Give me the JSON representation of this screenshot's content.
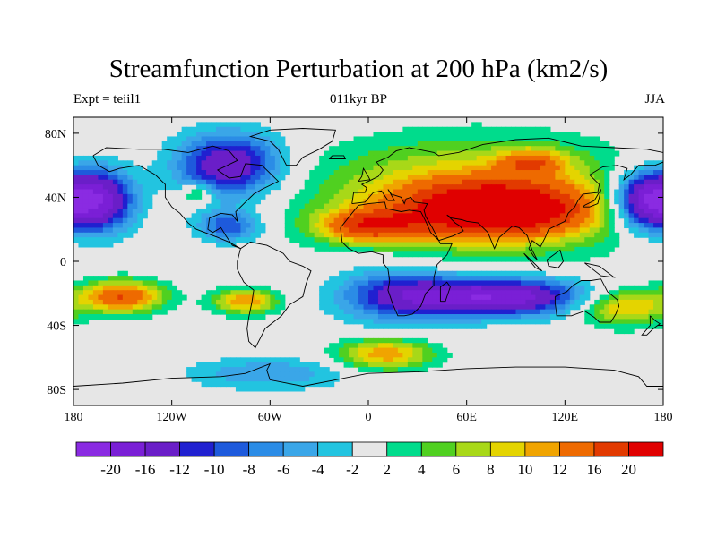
{
  "title": "Streamfunction Perturbation at 200 hPa (km2/s)",
  "subtitle_left": "Expt = teiil1",
  "subtitle_center": "011kyr BP",
  "subtitle_right": "JJA",
  "colors": {
    "land_outline": "#000000",
    "neutral": "#e6e6e6"
  },
  "chart_data": {
    "type": "heatmap",
    "projection": "cylindrical-equidistant",
    "xlim": [
      -180,
      180
    ],
    "ylim": [
      -90,
      90
    ],
    "x_ticks": [
      {
        "value": -180,
        "label": "180"
      },
      {
        "value": -120,
        "label": "120W"
      },
      {
        "value": -60,
        "label": "60W"
      },
      {
        "value": 0,
        "label": "0"
      },
      {
        "value": 60,
        "label": "60E"
      },
      {
        "value": 120,
        "label": "120E"
      },
      {
        "value": 180,
        "label": "180"
      }
    ],
    "y_ticks": [
      {
        "value": 80,
        "label": "80N"
      },
      {
        "value": 40,
        "label": "40N"
      },
      {
        "value": 0,
        "label": "0"
      },
      {
        "value": -40,
        "label": "40S"
      },
      {
        "value": -80,
        "label": "80S"
      }
    ],
    "colorbar": {
      "colors": [
        "#8a2be2",
        "#7a1fd6",
        "#6a1ec8",
        "#2020d0",
        "#1e5adc",
        "#2b8ce6",
        "#3aa6e8",
        "#22c4e0",
        "#e6e6e6",
        "#00dc8c",
        "#50d020",
        "#a8d818",
        "#e4d400",
        "#f0a400",
        "#ee6a00",
        "#e23a00",
        "#e00000"
      ],
      "labels": [
        "-20",
        "-16",
        "-12",
        "-10",
        "-8",
        "-6",
        "-4",
        "-2",
        "2",
        "4",
        "6",
        "8",
        "10",
        "12",
        "16",
        "20"
      ]
    },
    "features": [
      {
        "name": "asia-ridge",
        "lon": 80,
        "lat": 32,
        "value": 20,
        "extent_lon": 55,
        "extent_lat": 16
      },
      {
        "name": "asia-ridge-outer",
        "lon": 65,
        "lat": 40,
        "value": 12,
        "extent_lon": 95,
        "extent_lat": 34
      },
      {
        "name": "north-africa-high",
        "lon": 0,
        "lat": 22,
        "value": 14,
        "extent_lon": 30,
        "extent_lat": 10
      },
      {
        "name": "siberia-high",
        "lon": 100,
        "lat": 62,
        "value": 10,
        "extent_lon": 20,
        "extent_lat": 8
      },
      {
        "name": "north-america-low",
        "lon": -85,
        "lat": 60,
        "value": -16,
        "extent_lon": 32,
        "extent_lat": 20
      },
      {
        "name": "caribbean-low",
        "lon": -85,
        "lat": 22,
        "value": -10,
        "extent_lon": 20,
        "extent_lat": 10
      },
      {
        "name": "pacific-low-west",
        "lon": -165,
        "lat": 38,
        "value": -20,
        "extent_lon": 22,
        "extent_lat": 20
      },
      {
        "name": "pacific-low-east",
        "lon": 168,
        "lat": 38,
        "value": -20,
        "extent_lon": 20,
        "extent_lat": 18
      },
      {
        "name": "indian-ocean-low",
        "lon": 75,
        "lat": -22,
        "value": -20,
        "extent_lon": 60,
        "extent_lat": 12
      },
      {
        "name": "south-atlantic-low",
        "lon": 15,
        "lat": -20,
        "value": -8,
        "extent_lon": 35,
        "extent_lat": 20
      },
      {
        "name": "south-pacific-high",
        "lon": -150,
        "lat": -22,
        "value": 16,
        "extent_lon": 25,
        "extent_lat": 10
      },
      {
        "name": "south-america-high",
        "lon": -75,
        "lat": -25,
        "value": 12,
        "extent_lon": 20,
        "extent_lat": 8
      },
      {
        "name": "southern-ocean-high",
        "lon": 10,
        "lat": -58,
        "value": 12,
        "extent_lon": 30,
        "extent_lat": 10
      },
      {
        "name": "australia-high",
        "lon": 155,
        "lat": -28,
        "value": 12,
        "extent_lon": 28,
        "extent_lat": 12
      },
      {
        "name": "antarctic-low",
        "lon": -60,
        "lat": -70,
        "value": -6,
        "extent_lon": 50,
        "extent_lat": 10
      },
      {
        "name": "east-pacific-high",
        "lon": -105,
        "lat": 42,
        "value": 8,
        "extent_lon": 10,
        "extent_lat": 6
      }
    ]
  }
}
